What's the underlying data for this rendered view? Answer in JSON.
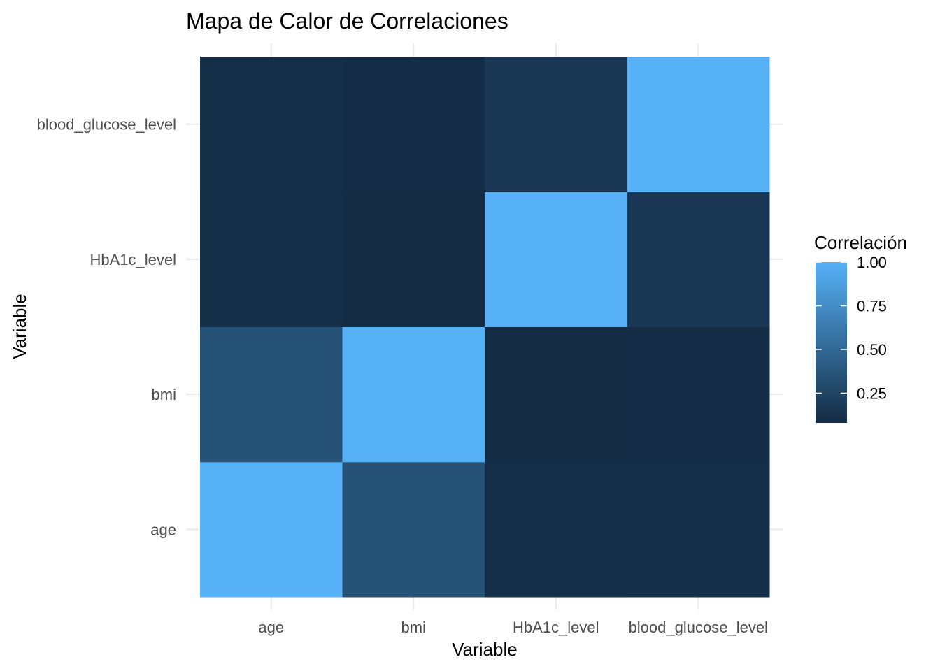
{
  "chart_data": {
    "type": "heatmap",
    "title": "Mapa de Calor de Correlaciones",
    "xlabel": "Variable",
    "ylabel": "Variable",
    "x": [
      "age",
      "bmi",
      "HbA1c_level",
      "blood_glucose_level"
    ],
    "y": [
      "age",
      "bmi",
      "HbA1c_level",
      "blood_glucose_level"
    ],
    "values": [
      [
        1.0,
        0.34,
        0.1,
        0.11
      ],
      [
        0.34,
        1.0,
        0.08,
        0.09
      ],
      [
        0.1,
        0.08,
        1.0,
        0.17
      ],
      [
        0.11,
        0.09,
        0.17,
        1.0
      ]
    ],
    "legend": {
      "title": "Correlación",
      "ticks": [
        "0.25",
        "0.50",
        "0.75",
        "1.00"
      ],
      "tick_values": [
        0.25,
        0.5,
        0.75,
        1.0
      ],
      "range": [
        0.08,
        1.0
      ],
      "placement": "right"
    },
    "colors": {
      "low": "#132B43",
      "high": "#56B1F7"
    },
    "grid": true
  }
}
